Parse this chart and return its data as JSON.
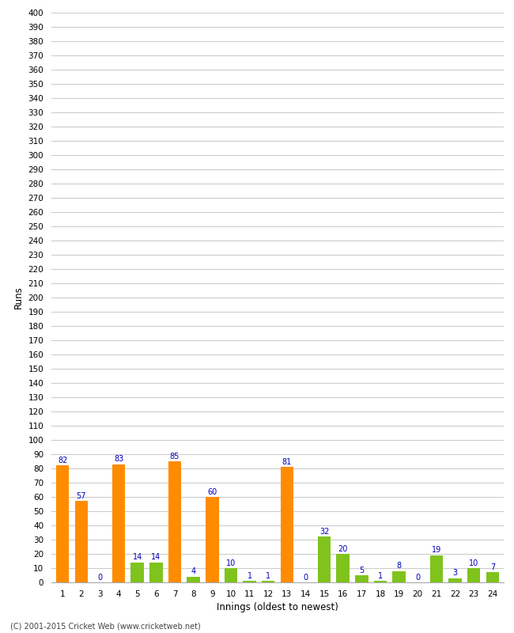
{
  "title": "",
  "xlabel": "Innings (oldest to newest)",
  "ylabel": "Runs",
  "innings": [
    1,
    2,
    3,
    4,
    5,
    6,
    7,
    8,
    9,
    10,
    11,
    12,
    13,
    14,
    15,
    16,
    17,
    18,
    19,
    20,
    21,
    22,
    23,
    24
  ],
  "values": [
    82,
    57,
    0,
    83,
    14,
    14,
    85,
    4,
    60,
    10,
    1,
    1,
    81,
    0,
    32,
    20,
    5,
    1,
    8,
    0,
    19,
    3,
    10,
    7
  ],
  "colors": [
    "#ff8c00",
    "#ff8c00",
    "#ff8c00",
    "#ff8c00",
    "#7fc31c",
    "#7fc31c",
    "#ff8c00",
    "#7fc31c",
    "#ff8c00",
    "#7fc31c",
    "#7fc31c",
    "#7fc31c",
    "#ff8c00",
    "#ff8c00",
    "#7fc31c",
    "#7fc31c",
    "#7fc31c",
    "#7fc31c",
    "#7fc31c",
    "#7fc31c",
    "#7fc31c",
    "#7fc31c",
    "#7fc31c",
    "#7fc31c"
  ],
  "ylim": [
    0,
    400
  ],
  "yticks": [
    0,
    10,
    20,
    30,
    40,
    50,
    60,
    70,
    80,
    90,
    100,
    110,
    120,
    130,
    140,
    150,
    160,
    170,
    180,
    190,
    200,
    210,
    220,
    230,
    240,
    250,
    260,
    270,
    280,
    290,
    300,
    310,
    320,
    330,
    340,
    350,
    360,
    370,
    380,
    390,
    400
  ],
  "label_color": "#0000bb",
  "grid_color": "#cccccc",
  "bg_color": "#ffffff",
  "footer": "(C) 2001-2015 Cricket Web (www.cricketweb.net)",
  "bar_width": 0.7,
  "figwidth": 6.5,
  "figheight": 8.0,
  "dpi": 100
}
